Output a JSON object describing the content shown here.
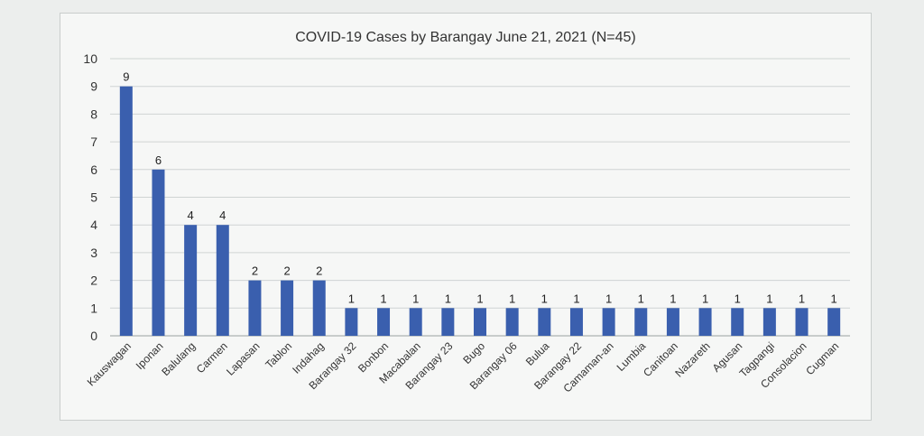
{
  "chart_data": {
    "type": "bar",
    "title": "COVID-19 Cases by Barangay June 21, 2021 (N=45)",
    "xlabel": "",
    "ylabel": "",
    "ylim": [
      0,
      10
    ],
    "yticks": [
      0,
      1,
      2,
      3,
      4,
      5,
      6,
      7,
      8,
      9,
      10
    ],
    "grid": true,
    "legend": "none",
    "bar_color": "#3a5fae",
    "categories": [
      "Kauswagan",
      "Iponan",
      "Balulang",
      "Carmen",
      "Lapasan",
      "Tablon",
      "Indahag",
      "Barangay 32",
      "Bonbon",
      "Macabalan",
      "Barangay 23",
      "Bugo",
      "Barangay 06",
      "Bulua",
      "Barangay 22",
      "Camaman-an",
      "Lumbia",
      "Canitoan",
      "Nazareth",
      "Agusan",
      "Tagpangi",
      "Consolacion",
      "Cugman"
    ],
    "values": [
      9,
      6,
      4,
      4,
      2,
      2,
      2,
      1,
      1,
      1,
      1,
      1,
      1,
      1,
      1,
      1,
      1,
      1,
      1,
      1,
      1,
      1,
      1
    ]
  }
}
